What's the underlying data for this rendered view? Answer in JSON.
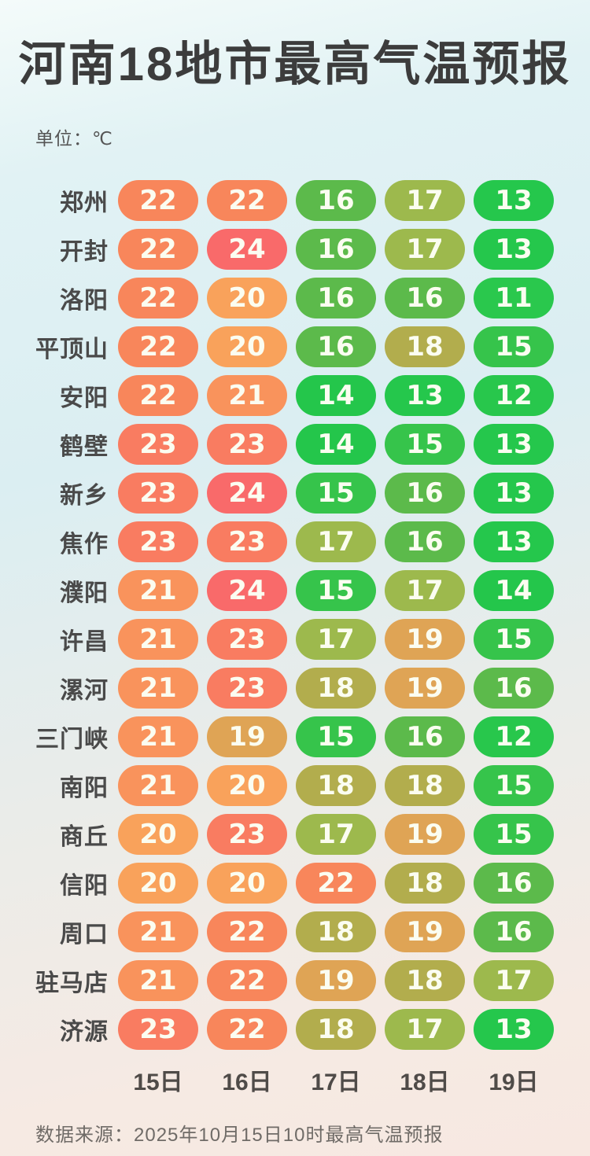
{
  "header": {
    "title": "河南18地市最高气温预报",
    "unit_label": "单位：℃"
  },
  "footer": {
    "source_label": "数据来源：2025年10月15日10时最高气温预报"
  },
  "chart_data": {
    "type": "heatmap",
    "title": "河南18地市最高气温预报",
    "unit": "℃",
    "columns": [
      "15日",
      "16日",
      "17日",
      "18日",
      "19日"
    ],
    "rows": [
      "郑州",
      "开封",
      "洛阳",
      "平顶山",
      "安阳",
      "鹤壁",
      "新乡",
      "焦作",
      "濮阳",
      "许昌",
      "漯河",
      "三门峡",
      "南阳",
      "商丘",
      "信阳",
      "周口",
      "驻马店",
      "济源"
    ],
    "values": [
      [
        22,
        22,
        16,
        17,
        13
      ],
      [
        22,
        24,
        16,
        17,
        13
      ],
      [
        22,
        20,
        16,
        16,
        11
      ],
      [
        22,
        20,
        16,
        18,
        15
      ],
      [
        22,
        21,
        14,
        13,
        12
      ],
      [
        23,
        23,
        14,
        15,
        13
      ],
      [
        23,
        24,
        15,
        16,
        13
      ],
      [
        23,
        23,
        17,
        16,
        13
      ],
      [
        21,
        24,
        15,
        17,
        14
      ],
      [
        21,
        23,
        17,
        19,
        15
      ],
      [
        21,
        23,
        18,
        19,
        16
      ],
      [
        21,
        19,
        15,
        16,
        12
      ],
      [
        21,
        20,
        18,
        18,
        15
      ],
      [
        20,
        23,
        17,
        19,
        15
      ],
      [
        20,
        20,
        22,
        18,
        16
      ],
      [
        21,
        22,
        18,
        19,
        16
      ],
      [
        21,
        22,
        19,
        18,
        17
      ],
      [
        23,
        22,
        18,
        17,
        13
      ]
    ],
    "value_colors": {
      "11": "#2ac84d",
      "12": "#28c74c",
      "13": "#25c74c",
      "14": "#24c64b",
      "15": "#36c44b",
      "16": "#5cba4b",
      "17": "#9db94d",
      "18": "#b2ad4d",
      "19": "#dfa455",
      "20": "#f9a25b",
      "21": "#f9935c",
      "22": "#f8865b",
      "23": "#f97c61",
      "24": "#f96a6a"
    },
    "source": "数据来源：2025年10月15日10时最高气温预报",
    "legend": "none",
    "grid": false
  }
}
